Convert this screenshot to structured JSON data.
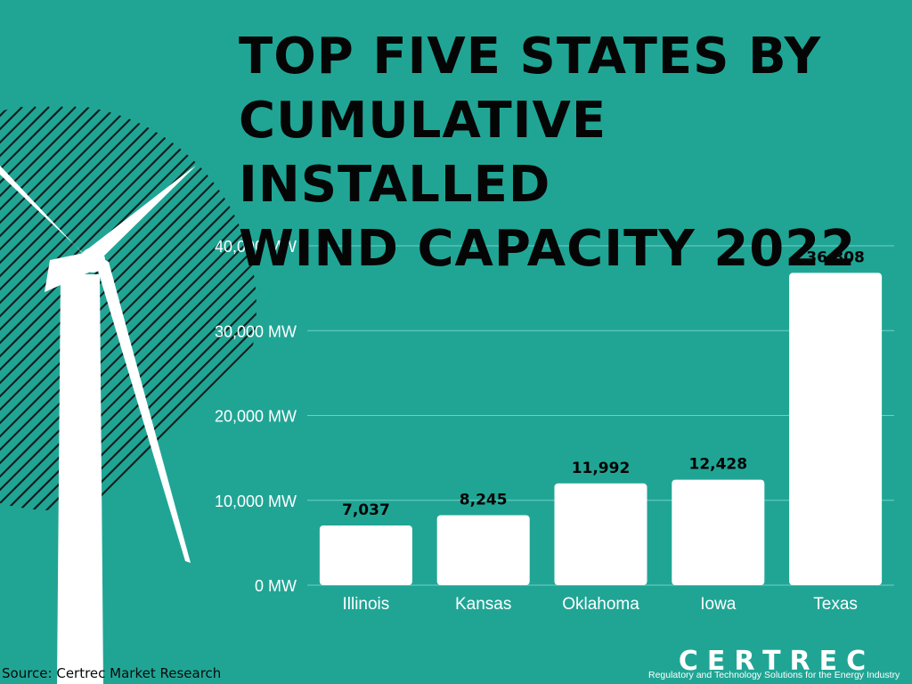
{
  "title_lines": [
    "TOP FIVE STATES BY",
    "CUMULATIVE INSTALLED",
    "WIND CAPACITY 2022"
  ],
  "source": "Source: Certrec Market Research",
  "logo": {
    "brand": "CERTREC",
    "tagline": "Regulatory and Technology Solutions for the Energy Industry"
  },
  "colors": {
    "background": "#20a595",
    "bar": "#ffffff",
    "text_dark": "#050505",
    "axis_text": "#ffffff",
    "grid": "#6fd0c4"
  },
  "chart_data": {
    "type": "bar",
    "title": "TOP FIVE STATES BY CUMULATIVE INSTALLED WIND CAPACITY 2022",
    "categories": [
      "Illinois",
      "Kansas",
      "Oklahoma",
      "Iowa",
      "Texas"
    ],
    "values": [
      7037,
      8245,
      11992,
      12428,
      36808
    ],
    "value_labels": [
      "7,037",
      "8,245",
      "11,992",
      "12,428",
      "36,808"
    ],
    "ylim": [
      0,
      40000
    ],
    "yticks": [
      0,
      10000,
      20000,
      30000,
      40000
    ],
    "ytick_labels": [
      "0 MW",
      "10,000 MW",
      "20,000 MW",
      "30,000 MW",
      "40,000 MW"
    ],
    "grid": true,
    "legend": "none"
  }
}
